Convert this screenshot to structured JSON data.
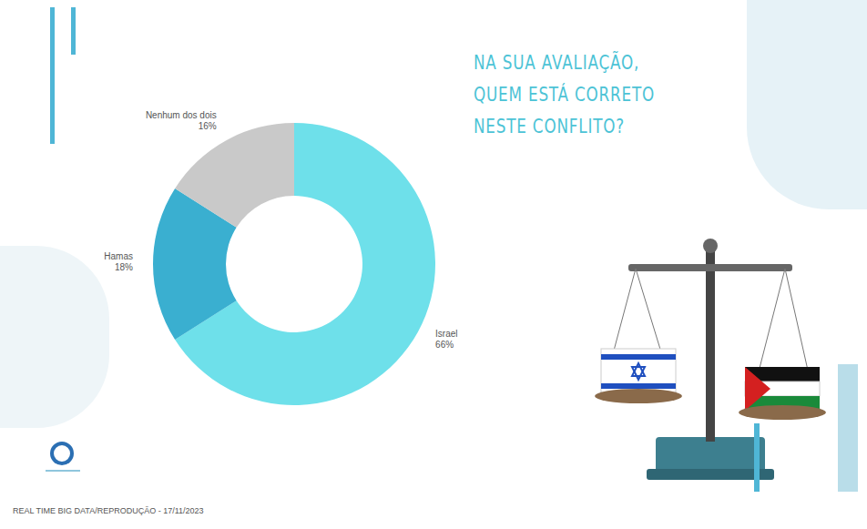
{
  "chart_data": {
    "type": "pie",
    "title": "NA SUA AVALIAÇÃO, QUEM ESTÁ CORRETO NESTE CONFLITO?",
    "source": "REAL TIME BIG DATA/REPRODUÇÃO - 17/11/2023",
    "categories": [
      "Israel",
      "Hamas",
      "Nenhum dos dois"
    ],
    "values": [
      66,
      18,
      16
    ],
    "value_labels": [
      "66%",
      "18%",
      "16%"
    ],
    "colors": [
      "#6ee0ea",
      "#3aafd0",
      "#c9c9c9"
    ],
    "data_labels": true
  }
}
